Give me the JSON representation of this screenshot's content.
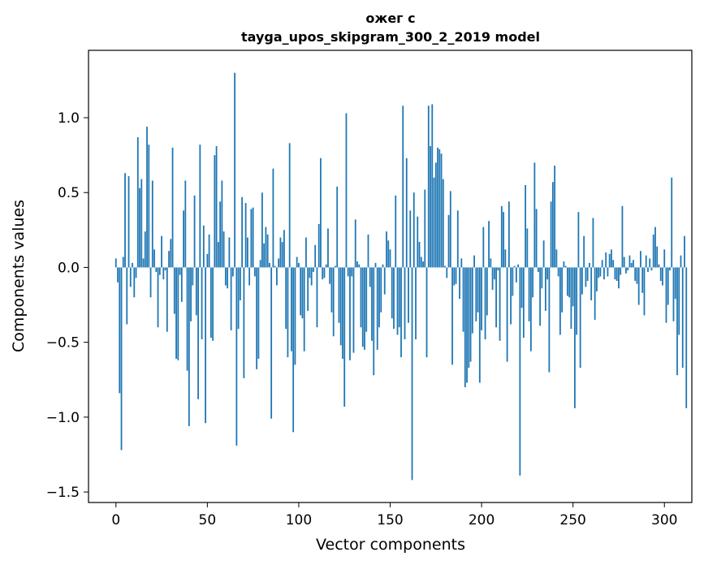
{
  "chart_data": {
    "type": "bar",
    "title_line1": "ожег c",
    "title_line2": "tayga_upos_skipgram_300_2_2019 model",
    "xlabel": "Vector components",
    "ylabel": "Components values",
    "xlim": [
      -15,
      315
    ],
    "ylim": [
      -1.57,
      1.45
    ],
    "xticks": [
      0,
      50,
      100,
      150,
      200,
      250,
      300
    ],
    "xtick_labels": [
      "0",
      "50",
      "100",
      "150",
      "200",
      "250",
      "300"
    ],
    "yticks": [
      -1.5,
      -1.0,
      -0.5,
      0.0,
      0.5,
      1.0
    ],
    "ytick_labels": [
      "−1.5",
      "−1.0",
      "−0.5",
      "0.0",
      "0.5",
      "1.0"
    ],
    "bar_color": "#1f77b4",
    "grid": false,
    "values": [
      0.06,
      -0.1,
      -0.84,
      -1.22,
      0.07,
      0.63,
      -0.38,
      0.61,
      -0.13,
      0.03,
      -0.2,
      -0.07,
      0.87,
      0.53,
      0.59,
      0.06,
      0.24,
      0.94,
      0.82,
      -0.2,
      0.58,
      0.12,
      -0.03,
      -0.4,
      -0.05,
      0.21,
      -0.08,
      -0.02,
      -0.43,
      0.11,
      0.19,
      0.8,
      -0.31,
      -0.61,
      -0.62,
      -0.05,
      -0.23,
      0.38,
      0.58,
      -0.69,
      -1.06,
      -0.36,
      -0.12,
      0.48,
      -0.32,
      -0.88,
      0.82,
      -0.48,
      0.28,
      -1.04,
      0.09,
      0.22,
      -0.47,
      -0.49,
      0.75,
      0.81,
      0.17,
      0.44,
      0.58,
      0.24,
      -0.12,
      -0.14,
      0.2,
      -0.42,
      -0.06,
      1.3,
      -1.19,
      -0.41,
      -0.22,
      0.47,
      -0.74,
      0.43,
      0.2,
      -0.12,
      0.39,
      0.4,
      -0.06,
      -0.68,
      -0.61,
      0.05,
      0.5,
      0.16,
      0.27,
      0.22,
      0.03,
      -1.01,
      0.66,
      0.01,
      -0.12,
      0.06,
      0.2,
      0.17,
      0.25,
      -0.41,
      -0.6,
      0.83,
      -0.56,
      -1.1,
      -0.65,
      0.07,
      0.03,
      -0.32,
      -0.34,
      -0.56,
      0.2,
      -0.29,
      -0.07,
      -0.12,
      -0.03,
      0.15,
      -0.4,
      0.29,
      0.73,
      -0.08,
      -0.07,
      0.02,
      0.26,
      -0.11,
      -0.3,
      -0.46,
      0.01,
      0.54,
      -0.37,
      -0.52,
      -0.61,
      -0.93,
      1.03,
      -0.06,
      -0.62,
      -0.06,
      -0.57,
      0.32,
      0.04,
      0.02,
      -0.4,
      -0.53,
      -0.55,
      -0.43,
      0.22,
      -0.13,
      -0.49,
      -0.72,
      0.03,
      -0.55,
      -0.4,
      -0.3,
      0.02,
      -0.18,
      0.24,
      0.18,
      0.12,
      -0.34,
      -0.41,
      0.48,
      -0.45,
      -0.4,
      -0.6,
      1.08,
      -0.48,
      0.73,
      -0.37,
      0.38,
      -1.42,
      0.5,
      -0.48,
      0.34,
      0.17,
      0.07,
      0.04,
      0.52,
      -0.6,
      1.08,
      0.81,
      1.09,
      0.6,
      0.7,
      0.8,
      0.79,
      0.76,
      0.59,
      0.01,
      -0.07,
      0.35,
      0.51,
      -0.65,
      -0.12,
      -0.11,
      0.38,
      -0.21,
      0.06,
      -0.43,
      -0.8,
      -0.77,
      -0.67,
      -0.63,
      -0.44,
      0.08,
      -0.36,
      -0.3,
      -0.77,
      -0.42,
      0.27,
      -0.48,
      -0.32,
      0.31,
      0.06,
      -0.15,
      -0.08,
      -0.4,
      -0.02,
      -0.49,
      0.41,
      0.37,
      0.12,
      -0.63,
      0.44,
      -0.38,
      -0.19,
      0.01,
      -0.1,
      0.02,
      -1.39,
      -0.27,
      -0.47,
      0.55,
      0.26,
      -0.36,
      -0.56,
      -0.2,
      0.7,
      0.39,
      -0.03,
      -0.39,
      -0.14,
      0.18,
      -0.29,
      -0.08,
      -0.7,
      0.44,
      0.57,
      0.68,
      0.12,
      -0.06,
      -0.45,
      -0.3,
      0.04,
      0.01,
      -0.19,
      -0.2,
      -0.41,
      -0.26,
      -0.94,
      -0.45,
      0.37,
      -0.67,
      -0.18,
      0.21,
      -0.13,
      -0.09,
      0.03,
      -0.22,
      0.33,
      -0.35,
      -0.16,
      -0.07,
      -0.06,
      0.05,
      -0.08,
      0.1,
      -0.06,
      0.09,
      0.12,
      0.05,
      -0.08,
      -0.09,
      -0.14,
      -0.05,
      0.41,
      0.07,
      -0.04,
      -0.02,
      0.08,
      0.03,
      0.05,
      -0.09,
      -0.11,
      -0.25,
      0.11,
      -0.17,
      -0.32,
      0.08,
      -0.03,
      0.06,
      -0.02,
      0.22,
      0.27,
      0.14,
      0.02,
      -0.09,
      -0.12,
      0.12,
      -0.37,
      -0.25,
      -0.02,
      0.6,
      -0.36,
      -0.21,
      -0.72,
      -0.45,
      0.08,
      -0.67,
      0.21,
      -0.94
    ]
  }
}
